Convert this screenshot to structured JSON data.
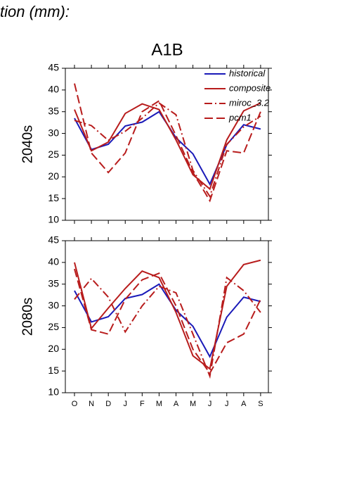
{
  "page_title": "tion (mm):",
  "scenario": "A1B",
  "chart_data": [
    {
      "type": "line",
      "ylabel": "2040s",
      "ylim": [
        10,
        45
      ],
      "yticks": [
        10,
        15,
        20,
        25,
        30,
        35,
        40,
        45
      ],
      "legend": "upper right",
      "series": [
        {
          "name": "historical",
          "color": "#1a1ab8",
          "dash": "solid",
          "values": [
            33.5,
            26.3,
            27.5,
            31.7,
            32.6,
            35,
            29,
            25.3,
            18.3,
            27.4,
            32,
            31
          ]
        },
        {
          "name": "composite",
          "color": "#b81c1c",
          "dash": "solid",
          "values": [
            35.5,
            26,
            28,
            34.6,
            36.8,
            35.5,
            28.5,
            20.5,
            17.2,
            28.5,
            35.2,
            37
          ]
        },
        {
          "name": "miroc_3.2",
          "color": "#b81c1c",
          "dash": "dashdot",
          "values": [
            33,
            31.8,
            28.4,
            30.5,
            33.5,
            37,
            34.3,
            21.5,
            15.5,
            27.5,
            31.5,
            34
          ]
        },
        {
          "name": "pcm1",
          "color": "#b81c1c",
          "dash": "dash",
          "values": [
            41.5,
            25.5,
            21,
            25.5,
            35,
            37.5,
            29.5,
            21,
            14.5,
            26,
            25.5,
            35
          ]
        }
      ]
    },
    {
      "type": "line",
      "ylabel": "2080s",
      "ylim": [
        10,
        45
      ],
      "yticks": [
        10,
        15,
        20,
        25,
        30,
        35,
        40,
        45
      ],
      "categories": [
        "O",
        "N",
        "D",
        "J",
        "F",
        "M",
        "A",
        "M",
        "J",
        "J",
        "A",
        "S"
      ],
      "series": [
        {
          "color": "#1a1ab8",
          "dash": "solid",
          "values": [
            33.5,
            26.3,
            27.5,
            31.7,
            32.6,
            35,
            29,
            25.3,
            18.3,
            27.4,
            32,
            31
          ]
        },
        {
          "color": "#b81c1c",
          "dash": "solid",
          "values": [
            40,
            24.8,
            29.5,
            34,
            38,
            36.5,
            28.5,
            18.5,
            15.5,
            34.5,
            39.5,
            40.5
          ]
        },
        {
          "color": "#b81c1c",
          "dash": "dashdot",
          "values": [
            31.5,
            36.3,
            32,
            24,
            30,
            34.5,
            33,
            23.5,
            13.8,
            36.5,
            33.5,
            28.5
          ]
        },
        {
          "color": "#b81c1c",
          "dash": "dash",
          "values": [
            38.5,
            24.5,
            23.5,
            31.5,
            36,
            37.5,
            30,
            20,
            14.5,
            21.5,
            23.5,
            31.5
          ]
        }
      ]
    }
  ]
}
